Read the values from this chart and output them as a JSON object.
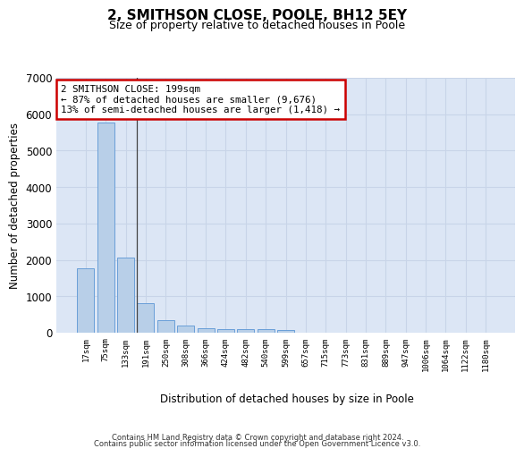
{
  "title": "2, SMITHSON CLOSE, POOLE, BH12 5EY",
  "subtitle": "Size of property relative to detached houses in Poole",
  "xlabel": "Distribution of detached houses by size in Poole",
  "ylabel": "Number of detached properties",
  "categories": [
    "17sqm",
    "75sqm",
    "133sqm",
    "191sqm",
    "250sqm",
    "308sqm",
    "366sqm",
    "424sqm",
    "482sqm",
    "540sqm",
    "599sqm",
    "657sqm",
    "715sqm",
    "773sqm",
    "831sqm",
    "889sqm",
    "947sqm",
    "1006sqm",
    "1064sqm",
    "1122sqm",
    "1180sqm"
  ],
  "values": [
    1780,
    5780,
    2060,
    820,
    340,
    190,
    120,
    110,
    100,
    90,
    80,
    0,
    0,
    0,
    0,
    0,
    0,
    0,
    0,
    0,
    0
  ],
  "highlight_index": 3,
  "bar_color": "#b8cfe8",
  "bar_edge_color": "#6a9fd8",
  "annotation_text": "2 SMITHSON CLOSE: 199sqm\n← 87% of detached houses are smaller (9,676)\n13% of semi-detached houses are larger (1,418) →",
  "annotation_box_color": "#ffffff",
  "annotation_box_edge_color": "#cc0000",
  "ylim": [
    0,
    7000
  ],
  "yticks": [
    0,
    1000,
    2000,
    3000,
    4000,
    5000,
    6000,
    7000
  ],
  "grid_color": "#c8d4e8",
  "background_color": "#dce6f5",
  "footer_line1": "Contains HM Land Registry data © Crown copyright and database right 2024.",
  "footer_line2": "Contains public sector information licensed under the Open Government Licence v3.0."
}
